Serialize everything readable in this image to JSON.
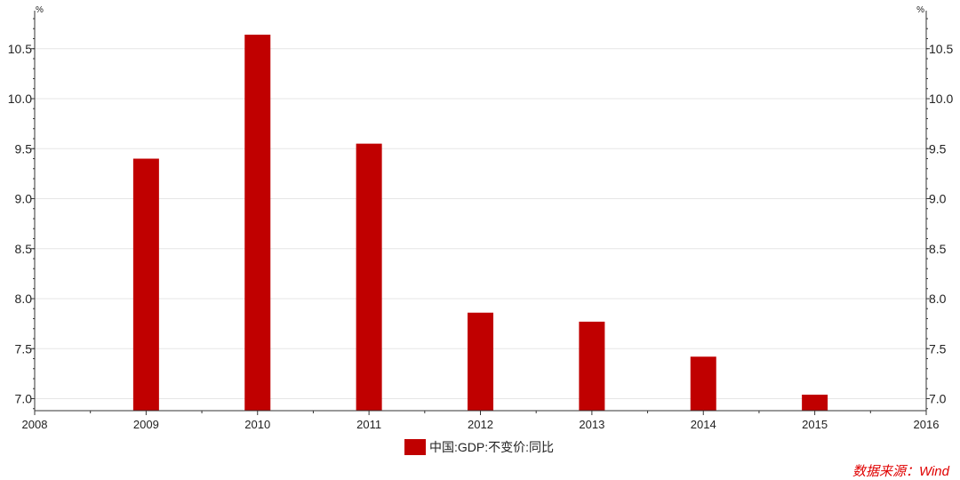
{
  "chart_data": {
    "type": "bar",
    "x_ticks": [
      "2008",
      "2009",
      "2010",
      "2011",
      "2012",
      "2013",
      "2014",
      "2015",
      "2016"
    ],
    "categories": [
      "2009",
      "2010",
      "2011",
      "2012",
      "2013",
      "2014",
      "2015"
    ],
    "series": [
      {
        "name": "中国:GDP:不变价:同比",
        "values": [
          9.4,
          10.64,
          9.55,
          7.86,
          7.77,
          7.42,
          7.04
        ],
        "color": "#c00000"
      }
    ],
    "y_ticks": [
      "7.0",
      "7.5",
      "8.0",
      "8.5",
      "9.0",
      "9.5",
      "10.0",
      "10.5"
    ],
    "ylim": [
      6.88,
      10.88
    ],
    "xlim": [
      2008,
      2016
    ],
    "y_unit_left": "%",
    "y_unit_right": "%",
    "dual_y_axis": true,
    "grid": true,
    "legend_position": "bottom-center"
  },
  "source_note": "数据来源：Wind",
  "colors": {
    "bar": "#c00000",
    "source_text": "#e00000",
    "grid": "#e6e6e6",
    "axis": "#333333"
  }
}
